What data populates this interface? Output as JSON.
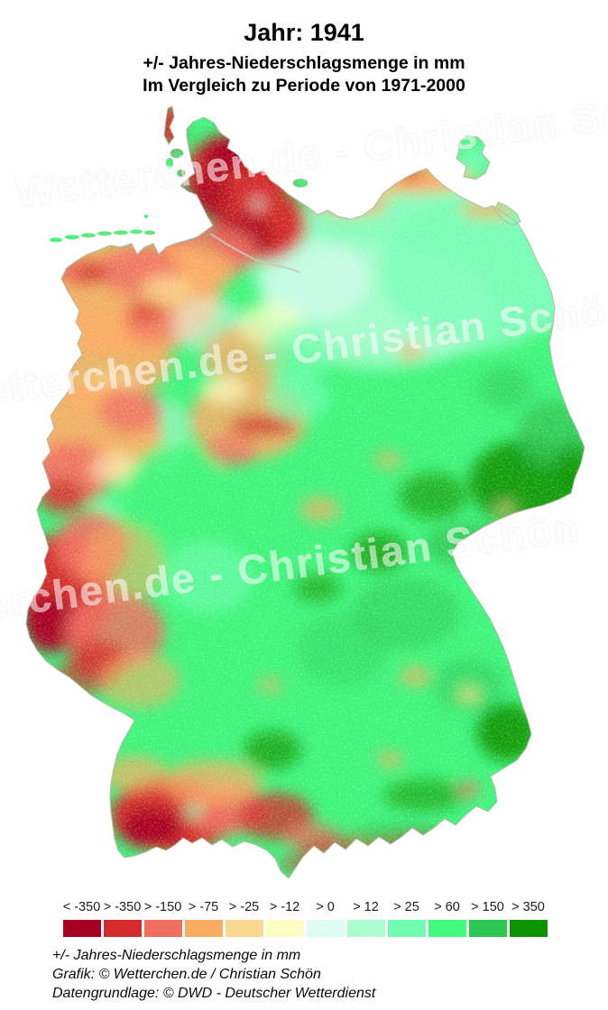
{
  "header": {
    "title": "Jahr: 1941",
    "subtitle_line1": "+/- Jahres-Niederschlagsmenge in mm",
    "subtitle_line2": "Im Vergleich zu Periode von 1971-2000"
  },
  "map": {
    "region": "Deutschland",
    "watermark_text": "Wetterchen.de - Christian Schön"
  },
  "legend": {
    "entries": [
      {
        "label": "< -350",
        "color": "#a50021"
      },
      {
        "label": "> -350",
        "color": "#d32b2b"
      },
      {
        "label": "> -150",
        "color": "#ef6f61"
      },
      {
        "label": "> -75",
        "color": "#fbac63"
      },
      {
        "label": "> -25",
        "color": "#fbd88f"
      },
      {
        "label": "> -12",
        "color": "#fdfdc1"
      },
      {
        "label": "> 0",
        "color": "#dffcf3"
      },
      {
        "label": "> 12",
        "color": "#a9fdcf"
      },
      {
        "label": "> 25",
        "color": "#70fdb2"
      },
      {
        "label": "> 60",
        "color": "#41fb7d"
      },
      {
        "label": "> 150",
        "color": "#2ec653"
      },
      {
        "label": "> 350",
        "color": "#0b9400"
      }
    ]
  },
  "footer": {
    "line1": "+/- Jahres-Niederschlagsmenge in mm",
    "line2": "Grafik: © Wetterchen.de / Christian Schön",
    "line3": "Datengrundlage: © DWD - Deutscher Wetterdienst"
  }
}
